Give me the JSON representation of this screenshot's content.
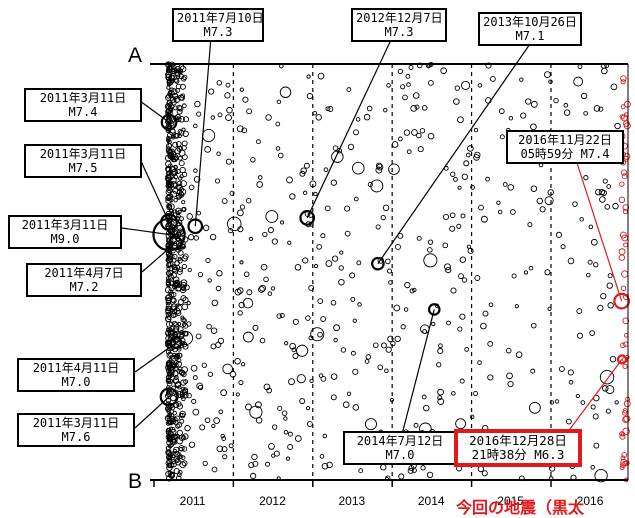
{
  "chart_data": {
    "type": "scatter",
    "x_start": 2010.95,
    "x_end": 2016.97,
    "y_range": [
      "A",
      "B"
    ],
    "end_labels": {
      "top": "A",
      "bottom": "B"
    },
    "xtick_labels": [
      "2011",
      "2012",
      "2013",
      "2014",
      "2015",
      "2016"
    ],
    "grid": "dashed-vertical-yearly",
    "highlight_after": 2016.89,
    "colors": {
      "normal": "#000000",
      "recent": "#e0191c"
    },
    "caption": "今回の地震（黒太",
    "events": [
      {
        "date": "2011年3月11日",
        "mag": "M7.4",
        "x": 2011.19,
        "pos": 0.14
      },
      {
        "date": "2011年3月11日",
        "mag": "M7.5",
        "x": 2011.19,
        "pos": 0.38
      },
      {
        "date": "2011年3月11日",
        "mag": "M9.0",
        "x": 2011.19,
        "pos": 0.41
      },
      {
        "date": "2011年4月7日",
        "mag": "M7.2",
        "x": 2011.27,
        "pos": 0.43
      },
      {
        "date": "2011年4月11日",
        "mag": "M7.0",
        "x": 2011.28,
        "pos": 0.67
      },
      {
        "date": "2011年3月11日",
        "mag": "M7.6",
        "x": 2011.19,
        "pos": 0.8
      },
      {
        "date": "2011年7月10日",
        "mag": "M7.3",
        "x": 2011.52,
        "pos": 0.39
      },
      {
        "date": "2012年12月7日",
        "mag": "M7.3",
        "x": 2012.93,
        "pos": 0.37
      },
      {
        "date": "2013年10月26日",
        "mag": "M7.1",
        "x": 2013.82,
        "pos": 0.48
      },
      {
        "date": "2014年7月12日",
        "mag": "M7.0",
        "x": 2014.53,
        "pos": 0.59
      },
      {
        "date": "2016年11月22日",
        "time": "05時59分",
        "mag": "M7.4",
        "x": 2016.89,
        "pos": 0.57
      },
      {
        "date": "2016年12月28日",
        "time": "21時38分",
        "mag": "M6.3",
        "x": 2016.99,
        "pos": 0.71
      }
    ]
  },
  "labels": {
    "l2011_0711": {
      "l1": "2011年7月10日",
      "l2": "M7.3"
    },
    "l2012": {
      "l1": "2012年12月7日",
      "l2": "M7.3"
    },
    "l2013": {
      "l1": "2013年10月26日",
      "l2": "M7.1"
    },
    "l2011a": {
      "l1": "2011年3月11日",
      "l2": "M7.4"
    },
    "l2011b": {
      "l1": "2011年3月11日",
      "l2": "M7.5"
    },
    "l2011c": {
      "l1": "2011年3月11日",
      "l2": "M9.0"
    },
    "l2011d": {
      "l1": "2011年4月7日",
      "l2": "M7.2"
    },
    "l2011e": {
      "l1": "2011年4月11日",
      "l2": "M7.0"
    },
    "l2011f": {
      "l1": "2011年3月11日",
      "l2": "M7.6"
    },
    "l2014": {
      "l1": "2014年7月12日",
      "l2": "M7.0"
    },
    "l2016a": {
      "l1": "2016年11月22日",
      "l2": "05時59分 M7.4"
    },
    "l2016b": {
      "l1": "2016年12月28日",
      "l2": "21時38分 M6.3"
    }
  }
}
